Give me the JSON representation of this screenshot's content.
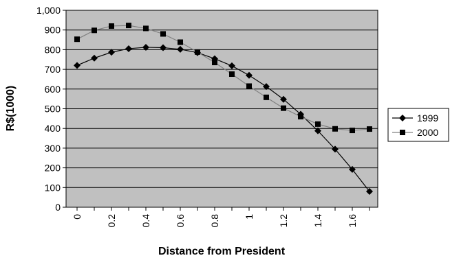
{
  "chart_data": {
    "type": "line",
    "title": "",
    "xlabel": "Distance from President",
    "ylabel": "R$(1000)",
    "x": [
      0,
      0.1,
      0.2,
      0.3,
      0.4,
      0.5,
      0.6,
      0.7,
      0.8,
      0.9,
      1.0,
      1.1,
      1.2,
      1.3,
      1.4,
      1.5,
      1.6,
      1.7
    ],
    "x_ticks": [
      0,
      0.2,
      0.4,
      0.6,
      0.8,
      1,
      1.2,
      1.4,
      1.6
    ],
    "x_tick_labels": [
      "0",
      "0.2",
      "0.4",
      "0.6",
      "0.8",
      "1",
      "1.2",
      "1.4",
      "1.6"
    ],
    "xlim": [
      0,
      1.7
    ],
    "ylim": [
      0,
      1000
    ],
    "y_ticks": [
      0,
      100,
      200,
      300,
      400,
      500,
      600,
      700,
      800,
      900,
      1000
    ],
    "y_tick_labels": [
      "0",
      "100",
      "200",
      "300",
      "400",
      "500",
      "600",
      "700",
      "800",
      "900",
      "1,000"
    ],
    "grid": "horizontal",
    "plot_background": "#c0c0c0",
    "legend_position": "right",
    "series": [
      {
        "name": "1999",
        "marker": "diamond",
        "color": "#000000",
        "values": [
          720,
          757,
          787,
          805,
          812,
          810,
          802,
          785,
          754,
          718,
          670,
          613,
          548,
          472,
          388,
          295,
          192,
          80
        ]
      },
      {
        "name": "2000",
        "marker": "square",
        "color": "#808080",
        "values": [
          853,
          898,
          920,
          923,
          908,
          880,
          838,
          788,
          735,
          676,
          615,
          558,
          503,
          460,
          422,
          398,
          390,
          397
        ]
      }
    ]
  }
}
